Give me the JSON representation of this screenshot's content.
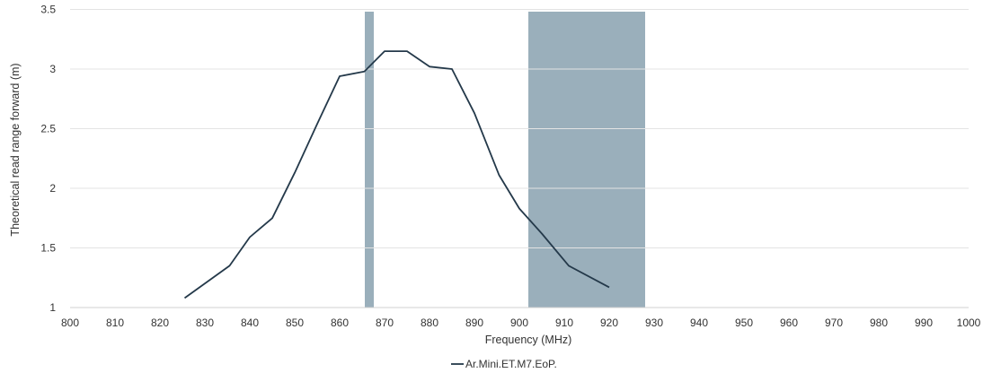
{
  "chart_data": {
    "type": "line",
    "title": "",
    "xlabel": "Frequency (MHz)",
    "ylabel": "Theoretical read range forward (m)",
    "xlim": [
      800,
      1000
    ],
    "ylim": [
      1,
      3.5
    ],
    "x_ticks": [
      800,
      810,
      820,
      830,
      840,
      850,
      860,
      870,
      880,
      890,
      900,
      910,
      920,
      930,
      940,
      950,
      960,
      970,
      980,
      990,
      1000
    ],
    "y_ticks": [
      1,
      1.5,
      2,
      2.5,
      3,
      3.5
    ],
    "y_tick_labels": [
      "1",
      "1.5",
      "2",
      "2.5",
      "3",
      "3.5"
    ],
    "grid": "horizontal",
    "legend_position": "bottom",
    "bands": [
      {
        "x_start": 865.6,
        "x_end": 867.6,
        "color": "#9aafbb"
      },
      {
        "x_start": 902,
        "x_end": 928,
        "color": "#9aafbb"
      }
    ],
    "series": [
      {
        "name": "Ar.Mini.ET.M7.EoP.",
        "color": "#24394a",
        "x": [
          825.5,
          835.5,
          840,
          845,
          850,
          855,
          860,
          865.5,
          870,
          875,
          880,
          885,
          890,
          895.5,
          900,
          905,
          911,
          920
        ],
        "y": [
          1.08,
          1.35,
          1.59,
          1.75,
          2.13,
          2.54,
          2.94,
          2.98,
          3.15,
          3.15,
          3.02,
          3.0,
          2.63,
          2.11,
          1.83,
          1.62,
          1.35,
          1.17
        ]
      }
    ]
  }
}
